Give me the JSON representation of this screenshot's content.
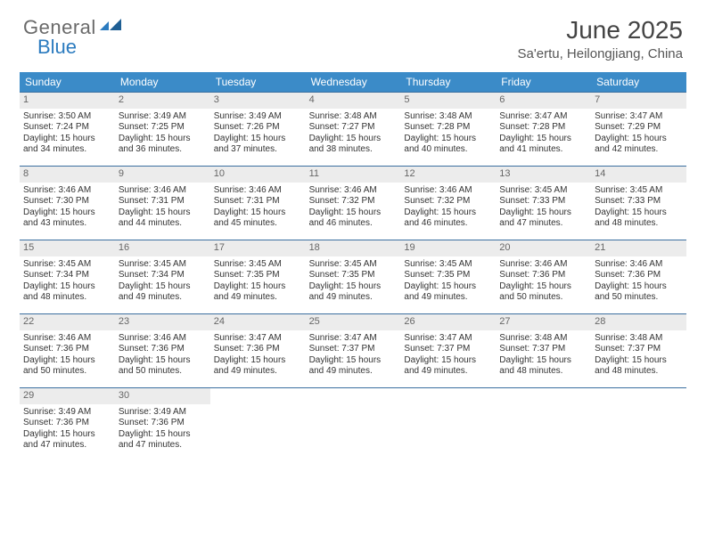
{
  "brand": {
    "part1": "General",
    "part2": "Blue"
  },
  "title": "June 2025",
  "location": "Sa'ertu, Heilongjiang, China",
  "colors": {
    "header_bg": "#3b8bc8",
    "header_text": "#ffffff",
    "week_border": "#3b6fa0",
    "daynum_bg": "#ececec",
    "brand_gray": "#6a6a6a",
    "brand_blue": "#2b7bbf"
  },
  "day_names": [
    "Sunday",
    "Monday",
    "Tuesday",
    "Wednesday",
    "Thursday",
    "Friday",
    "Saturday"
  ],
  "weeks": [
    [
      {
        "n": "1",
        "sr": "Sunrise: 3:50 AM",
        "ss": "Sunset: 7:24 PM",
        "d1": "Daylight: 15 hours",
        "d2": "and 34 minutes."
      },
      {
        "n": "2",
        "sr": "Sunrise: 3:49 AM",
        "ss": "Sunset: 7:25 PM",
        "d1": "Daylight: 15 hours",
        "d2": "and 36 minutes."
      },
      {
        "n": "3",
        "sr": "Sunrise: 3:49 AM",
        "ss": "Sunset: 7:26 PM",
        "d1": "Daylight: 15 hours",
        "d2": "and 37 minutes."
      },
      {
        "n": "4",
        "sr": "Sunrise: 3:48 AM",
        "ss": "Sunset: 7:27 PM",
        "d1": "Daylight: 15 hours",
        "d2": "and 38 minutes."
      },
      {
        "n": "5",
        "sr": "Sunrise: 3:48 AM",
        "ss": "Sunset: 7:28 PM",
        "d1": "Daylight: 15 hours",
        "d2": "and 40 minutes."
      },
      {
        "n": "6",
        "sr": "Sunrise: 3:47 AM",
        "ss": "Sunset: 7:28 PM",
        "d1": "Daylight: 15 hours",
        "d2": "and 41 minutes."
      },
      {
        "n": "7",
        "sr": "Sunrise: 3:47 AM",
        "ss": "Sunset: 7:29 PM",
        "d1": "Daylight: 15 hours",
        "d2": "and 42 minutes."
      }
    ],
    [
      {
        "n": "8",
        "sr": "Sunrise: 3:46 AM",
        "ss": "Sunset: 7:30 PM",
        "d1": "Daylight: 15 hours",
        "d2": "and 43 minutes."
      },
      {
        "n": "9",
        "sr": "Sunrise: 3:46 AM",
        "ss": "Sunset: 7:31 PM",
        "d1": "Daylight: 15 hours",
        "d2": "and 44 minutes."
      },
      {
        "n": "10",
        "sr": "Sunrise: 3:46 AM",
        "ss": "Sunset: 7:31 PM",
        "d1": "Daylight: 15 hours",
        "d2": "and 45 minutes."
      },
      {
        "n": "11",
        "sr": "Sunrise: 3:46 AM",
        "ss": "Sunset: 7:32 PM",
        "d1": "Daylight: 15 hours",
        "d2": "and 46 minutes."
      },
      {
        "n": "12",
        "sr": "Sunrise: 3:46 AM",
        "ss": "Sunset: 7:32 PM",
        "d1": "Daylight: 15 hours",
        "d2": "and 46 minutes."
      },
      {
        "n": "13",
        "sr": "Sunrise: 3:45 AM",
        "ss": "Sunset: 7:33 PM",
        "d1": "Daylight: 15 hours",
        "d2": "and 47 minutes."
      },
      {
        "n": "14",
        "sr": "Sunrise: 3:45 AM",
        "ss": "Sunset: 7:33 PM",
        "d1": "Daylight: 15 hours",
        "d2": "and 48 minutes."
      }
    ],
    [
      {
        "n": "15",
        "sr": "Sunrise: 3:45 AM",
        "ss": "Sunset: 7:34 PM",
        "d1": "Daylight: 15 hours",
        "d2": "and 48 minutes."
      },
      {
        "n": "16",
        "sr": "Sunrise: 3:45 AM",
        "ss": "Sunset: 7:34 PM",
        "d1": "Daylight: 15 hours",
        "d2": "and 49 minutes."
      },
      {
        "n": "17",
        "sr": "Sunrise: 3:45 AM",
        "ss": "Sunset: 7:35 PM",
        "d1": "Daylight: 15 hours",
        "d2": "and 49 minutes."
      },
      {
        "n": "18",
        "sr": "Sunrise: 3:45 AM",
        "ss": "Sunset: 7:35 PM",
        "d1": "Daylight: 15 hours",
        "d2": "and 49 minutes."
      },
      {
        "n": "19",
        "sr": "Sunrise: 3:45 AM",
        "ss": "Sunset: 7:35 PM",
        "d1": "Daylight: 15 hours",
        "d2": "and 49 minutes."
      },
      {
        "n": "20",
        "sr": "Sunrise: 3:46 AM",
        "ss": "Sunset: 7:36 PM",
        "d1": "Daylight: 15 hours",
        "d2": "and 50 minutes."
      },
      {
        "n": "21",
        "sr": "Sunrise: 3:46 AM",
        "ss": "Sunset: 7:36 PM",
        "d1": "Daylight: 15 hours",
        "d2": "and 50 minutes."
      }
    ],
    [
      {
        "n": "22",
        "sr": "Sunrise: 3:46 AM",
        "ss": "Sunset: 7:36 PM",
        "d1": "Daylight: 15 hours",
        "d2": "and 50 minutes."
      },
      {
        "n": "23",
        "sr": "Sunrise: 3:46 AM",
        "ss": "Sunset: 7:36 PM",
        "d1": "Daylight: 15 hours",
        "d2": "and 50 minutes."
      },
      {
        "n": "24",
        "sr": "Sunrise: 3:47 AM",
        "ss": "Sunset: 7:36 PM",
        "d1": "Daylight: 15 hours",
        "d2": "and 49 minutes."
      },
      {
        "n": "25",
        "sr": "Sunrise: 3:47 AM",
        "ss": "Sunset: 7:37 PM",
        "d1": "Daylight: 15 hours",
        "d2": "and 49 minutes."
      },
      {
        "n": "26",
        "sr": "Sunrise: 3:47 AM",
        "ss": "Sunset: 7:37 PM",
        "d1": "Daylight: 15 hours",
        "d2": "and 49 minutes."
      },
      {
        "n": "27",
        "sr": "Sunrise: 3:48 AM",
        "ss": "Sunset: 7:37 PM",
        "d1": "Daylight: 15 hours",
        "d2": "and 48 minutes."
      },
      {
        "n": "28",
        "sr": "Sunrise: 3:48 AM",
        "ss": "Sunset: 7:37 PM",
        "d1": "Daylight: 15 hours",
        "d2": "and 48 minutes."
      }
    ],
    [
      {
        "n": "29",
        "sr": "Sunrise: 3:49 AM",
        "ss": "Sunset: 7:36 PM",
        "d1": "Daylight: 15 hours",
        "d2": "and 47 minutes."
      },
      {
        "n": "30",
        "sr": "Sunrise: 3:49 AM",
        "ss": "Sunset: 7:36 PM",
        "d1": "Daylight: 15 hours",
        "d2": "and 47 minutes."
      },
      null,
      null,
      null,
      null,
      null
    ]
  ]
}
